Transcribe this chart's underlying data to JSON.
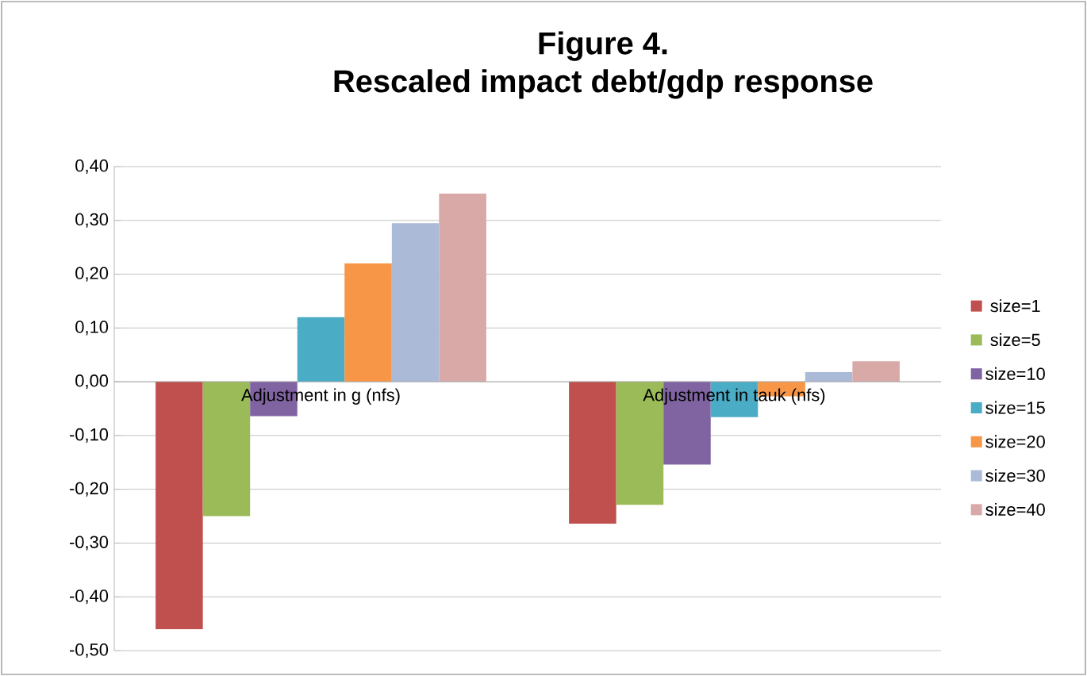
{
  "chart_data": {
    "type": "bar",
    "title": "Figure 4.",
    "subtitle": "Rescaled impact debt/gdp response",
    "categories": [
      "Adjustment in g (nfs)",
      "Adjustment in tauk (nfs)"
    ],
    "series": [
      {
        "name": "size=1",
        "color": "#c0504d",
        "values": [
          -0.46,
          -0.264
        ]
      },
      {
        "name": "size=5",
        "color": "#9bbb59",
        "values": [
          -0.25,
          -0.229
        ]
      },
      {
        "name": "size=10",
        "color": "#8064a2",
        "values": [
          -0.064,
          -0.154
        ]
      },
      {
        "name": "size=15",
        "color": "#4bacc6",
        "values": [
          0.12,
          -0.066
        ]
      },
      {
        "name": "size=20",
        "color": "#f79646",
        "values": [
          0.22,
          -0.027
        ]
      },
      {
        "name": "size=30",
        "color": "#aabad7",
        "values": [
          0.295,
          0.018
        ]
      },
      {
        "name": "size=40",
        "color": "#d9a9a8",
        "values": [
          0.35,
          0.038
        ]
      }
    ],
    "ylim": [
      -0.5,
      0.4
    ],
    "yticks": [
      {
        "value": -0.5,
        "label": "-0,50"
      },
      {
        "value": -0.4,
        "label": "-0,40"
      },
      {
        "value": -0.3,
        "label": "-0,30"
      },
      {
        "value": -0.2,
        "label": "-0,20"
      },
      {
        "value": -0.1,
        "label": "-0,10"
      },
      {
        "value": 0,
        "label": "0,00"
      },
      {
        "value": 0.1,
        "label": "0,10"
      },
      {
        "value": 0.2,
        "label": "0,20"
      },
      {
        "value": 0.3,
        "label": "0,30"
      },
      {
        "value": 0.4,
        "label": "0,40"
      }
    ],
    "grid": "y",
    "legend": "right"
  }
}
